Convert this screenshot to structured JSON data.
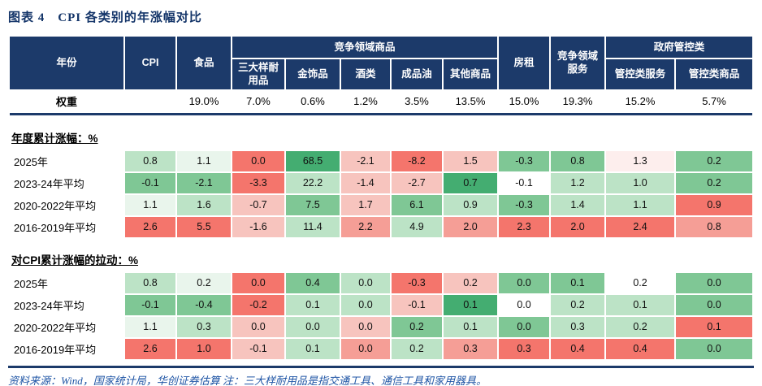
{
  "title": "图表 4　CPI 各类别的年涨幅对比",
  "header": {
    "year": "年份",
    "cpi": "CPI",
    "food": "食品",
    "comp_goods_group": "竞争领域商品",
    "sub1": "三大样耐\n用品",
    "sub2": "金饰品",
    "sub3": "酒类",
    "sub4": "成品油",
    "sub5": "其他商品",
    "rent": "房租",
    "comp_services": "竞争领域\n服务",
    "gov_group": "政府管控类",
    "gov1": "管控类服务",
    "gov2": "管控类商品"
  },
  "weights": {
    "label": "权重",
    "values": [
      "",
      "19.0%",
      "7.0%",
      "0.6%",
      "1.2%",
      "3.5%",
      "13.5%",
      "15.0%",
      "19.3%",
      "15.2%",
      "5.7%"
    ]
  },
  "sections": [
    {
      "title": "年度累计涨幅：%",
      "rows": [
        {
          "label": "2025年",
          "values": [
            "0.8",
            "1.1",
            "0.0",
            "68.5",
            "-2.1",
            "-8.2",
            "1.5",
            "-0.3",
            "0.8",
            "1.3",
            "0.2"
          ],
          "bg": [
            "g1",
            "g0",
            "r3",
            "g3",
            "r1",
            "r3",
            "r1",
            "g2",
            "g2",
            "r0",
            "g2"
          ]
        },
        {
          "label": "2023-24年平均",
          "values": [
            "-0.1",
            "-2.1",
            "-3.3",
            "22.2",
            "-1.4",
            "-2.7",
            "0.7",
            "-0.1",
            "1.2",
            "1.0",
            "0.2"
          ],
          "bg": [
            "g2",
            "g2",
            "r3",
            "g1",
            "r1",
            "r1",
            "g3",
            "w",
            "g1",
            "g1",
            "g2"
          ]
        },
        {
          "label": "2020-2022年平均",
          "values": [
            "1.1",
            "1.6",
            "-0.7",
            "7.5",
            "1.7",
            "6.1",
            "0.9",
            "-0.3",
            "1.4",
            "1.1",
            "0.9"
          ],
          "bg": [
            "g0",
            "g1",
            "r1",
            "g2",
            "r1",
            "g2",
            "g1",
            "g2",
            "g1",
            "g1",
            "r3"
          ]
        },
        {
          "label": "2016-2019年平均",
          "values": [
            "2.6",
            "5.5",
            "-1.6",
            "11.4",
            "2.2",
            "4.9",
            "2.0",
            "2.3",
            "2.0",
            "2.4",
            "0.8"
          ],
          "bg": [
            "r3",
            "r3",
            "r1",
            "g1",
            "r2",
            "g1",
            "r2",
            "r3",
            "r3",
            "r3",
            "r2"
          ]
        }
      ]
    },
    {
      "title": "对CPI累计涨幅的拉动：%",
      "rows": [
        {
          "label": "2025年",
          "values": [
            "0.8",
            "0.2",
            "0.0",
            "0.4",
            "0.0",
            "-0.3",
            "0.2",
            "0.0",
            "0.1",
            "0.2",
            "0.0"
          ],
          "bg": [
            "g1",
            "g0",
            "r3",
            "g2",
            "g1",
            "r3",
            "r1",
            "g2",
            "g2",
            "w",
            "g2"
          ]
        },
        {
          "label": "2023-24年平均",
          "values": [
            "-0.1",
            "-0.4",
            "-0.2",
            "0.1",
            "0.0",
            "-0.1",
            "0.1",
            "0.0",
            "0.2",
            "0.1",
            "0.0"
          ],
          "bg": [
            "g2",
            "g2",
            "r3",
            "g1",
            "g1",
            "r1",
            "g3",
            "w",
            "g1",
            "g1",
            "g2"
          ]
        },
        {
          "label": "2020-2022年平均",
          "values": [
            "1.1",
            "0.3",
            "0.0",
            "0.0",
            "0.0",
            "0.2",
            "0.1",
            "0.0",
            "0.3",
            "0.2",
            "0.1"
          ],
          "bg": [
            "g0",
            "g1",
            "r1",
            "g1",
            "r1",
            "g2",
            "g1",
            "g2",
            "g1",
            "g1",
            "r3"
          ]
        },
        {
          "label": "2016-2019年平均",
          "values": [
            "2.6",
            "1.0",
            "-0.1",
            "0.1",
            "0.0",
            "0.2",
            "0.3",
            "0.3",
            "0.4",
            "0.4",
            "0.0"
          ],
          "bg": [
            "r3",
            "r3",
            "r1",
            "g1",
            "r2",
            "g1",
            "r2",
            "r3",
            "r3",
            "r3",
            "g2"
          ]
        }
      ]
    }
  ],
  "footer": "资料来源：Wind，国家统计局，华创证券估算  注：三大样耐用品是指交通工具、通信工具和家用器具。",
  "colors": {
    "header_bg": "#1c3a6a",
    "title_text": "#143569",
    "footer_text": "#1f55a5",
    "divider": "#1c3a6a",
    "scale": {
      "g3": "#44ad71",
      "g2": "#7fc795",
      "g1": "#bce3c6",
      "g0": "#e9f5ec",
      "w": "#ffffff",
      "r0": "#fdeeed",
      "r1": "#f7c4be",
      "r2": "#f59e96",
      "r3": "#f4756c"
    }
  }
}
